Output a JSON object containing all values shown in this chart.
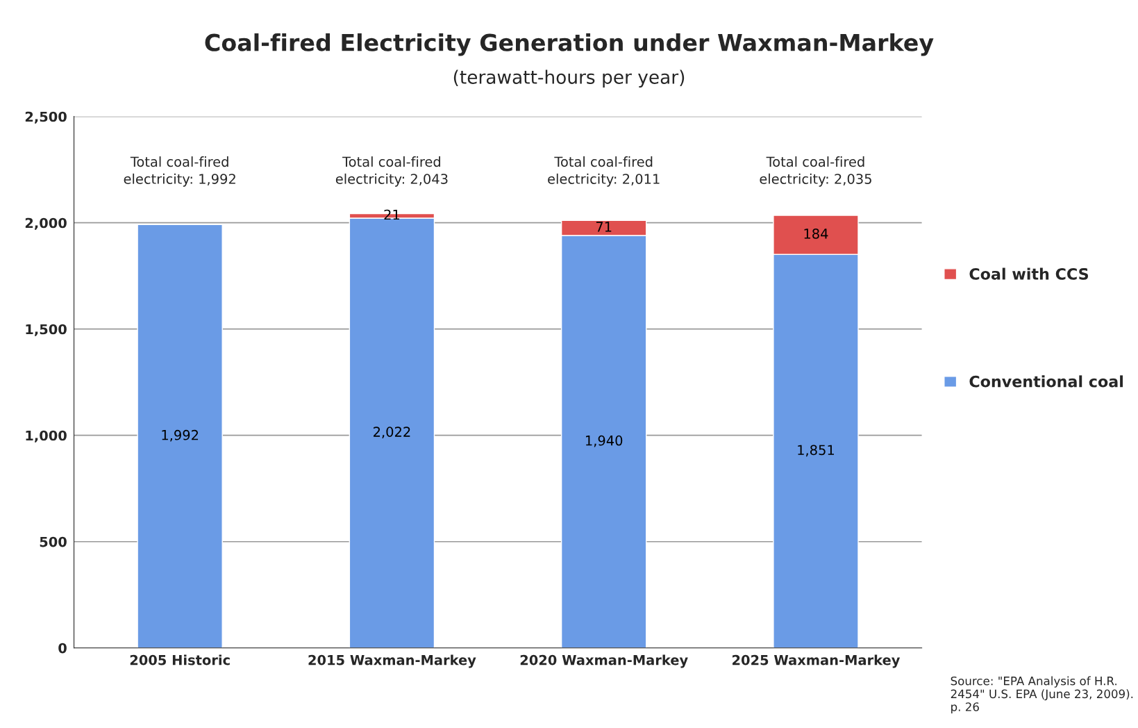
{
  "chart_data": {
    "type": "bar",
    "title": "Coal-fired Electricity Generation under Waxman-Markey",
    "subtitle": "(terawatt-hours per year)",
    "categories": [
      "2005 Historic",
      "2015 Waxman-Markey",
      "2020 Waxman-Markey",
      "2025 Waxman-Markey"
    ],
    "stacked": true,
    "series": [
      {
        "name": "Conventional coal",
        "color": "#6a9be6",
        "values": [
          1992,
          2022,
          1940,
          1851
        ],
        "value_labels": [
          "1,992",
          "2,022",
          "1,940",
          "1,851"
        ]
      },
      {
        "name": "Coal with CCS",
        "color": "#e0504f",
        "values": [
          null,
          21,
          71,
          184
        ],
        "value_labels": [
          null,
          "21",
          "71",
          "184"
        ]
      }
    ],
    "totals": [
      "Total coal-fired\nelectricity: 1,992",
      "Total coal-fired\nelectricity: 2,043",
      "Total coal-fired\nelectricity: 2,011",
      "Total coal-fired\nelectricity: 2,035"
    ],
    "ylim": [
      0,
      2500
    ],
    "yticks": [
      {
        "value": 0,
        "label": "0"
      },
      {
        "value": 500,
        "label": "500"
      },
      {
        "value": 1000,
        "label": "1,000"
      },
      {
        "value": 1500,
        "label": "1,500"
      },
      {
        "value": 2000,
        "label": "2,000"
      },
      {
        "value": 2500,
        "label": "2,500"
      }
    ],
    "grid": "y",
    "legend": "right",
    "annotations": [
      "Source: \"EPA Analysis of H.R. 2454\" U.S. EPA (June 23, 2009). p. 26"
    ]
  }
}
